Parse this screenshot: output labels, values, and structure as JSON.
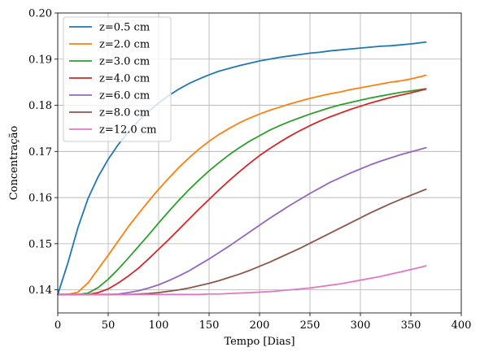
{
  "chart_data": {
    "type": "line",
    "title": "",
    "xlabel": "Tempo [Dias]",
    "ylabel": "Concentração",
    "xlim": [
      0,
      400
    ],
    "ylim": [
      0.135,
      0.2
    ],
    "xticks": [
      "0",
      "50",
      "100",
      "150",
      "200",
      "250",
      "300",
      "350",
      "400"
    ],
    "yticks": [
      "0.14",
      "0.15",
      "0.16",
      "0.17",
      "0.18",
      "0.19",
      "0.20"
    ],
    "grid": true,
    "legend_position": "top-left",
    "x": [
      0,
      10,
      20,
      30,
      40,
      50,
      60,
      70,
      80,
      90,
      100,
      110,
      120,
      130,
      140,
      150,
      160,
      170,
      180,
      190,
      200,
      210,
      220,
      230,
      240,
      250,
      260,
      270,
      280,
      290,
      300,
      310,
      320,
      330,
      340,
      350,
      365
    ],
    "series": [
      {
        "name": "z=0.5 cm",
        "color": "#1f77b4",
        "values": [
          0.139,
          0.1458,
          0.1535,
          0.1598,
          0.1645,
          0.1683,
          0.1715,
          0.1742,
          0.1766,
          0.1787,
          0.1805,
          0.1821,
          0.1835,
          0.1847,
          0.1857,
          0.1866,
          0.1874,
          0.188,
          0.1886,
          0.1891,
          0.1896,
          0.19,
          0.1904,
          0.1907,
          0.191,
          0.1913,
          0.1915,
          0.1918,
          0.192,
          0.1922,
          0.1924,
          0.1926,
          0.1928,
          0.1929,
          0.1931,
          0.1933,
          0.1937
        ]
      },
      {
        "name": "z=2.0 cm",
        "color": "#ff7f0e",
        "values": [
          0.139,
          0.139,
          0.1395,
          0.1415,
          0.1445,
          0.1475,
          0.1506,
          0.1537,
          0.1565,
          0.1592,
          0.1618,
          0.1642,
          0.1665,
          0.1686,
          0.1705,
          0.1722,
          0.1737,
          0.175,
          0.1762,
          0.1772,
          0.1781,
          0.1789,
          0.1796,
          0.1803,
          0.1809,
          0.1815,
          0.182,
          0.1825,
          0.1829,
          0.1834,
          0.1838,
          0.1842,
          0.1846,
          0.185,
          0.1853,
          0.1857,
          0.1865
        ]
      },
      {
        "name": "z=3.0 cm",
        "color": "#2ca02c",
        "values": [
          0.139,
          0.139,
          0.139,
          0.1393,
          0.1405,
          0.1423,
          0.1445,
          0.1469,
          0.1494,
          0.1519,
          0.1545,
          0.157,
          0.1594,
          0.1617,
          0.1638,
          0.1658,
          0.1676,
          0.1693,
          0.1708,
          0.1722,
          0.1734,
          0.1746,
          0.1756,
          0.1765,
          0.1773,
          0.1781,
          0.1788,
          0.1795,
          0.1801,
          0.1806,
          0.1811,
          0.1816,
          0.182,
          0.1824,
          0.1828,
          0.1831,
          0.1836
        ]
      },
      {
        "name": "z=4.0 cm",
        "color": "#d62728",
        "values": [
          0.139,
          0.139,
          0.139,
          0.139,
          0.1394,
          0.1402,
          0.1415,
          0.143,
          0.1447,
          0.1467,
          0.1488,
          0.1509,
          0.1531,
          0.1553,
          0.1575,
          0.1596,
          0.1617,
          0.1637,
          0.1656,
          0.1674,
          0.1691,
          0.1706,
          0.172,
          0.1733,
          0.1745,
          0.1756,
          0.1766,
          0.1775,
          0.1783,
          0.1791,
          0.1798,
          0.1805,
          0.1811,
          0.1817,
          0.1822,
          0.1827,
          0.1835
        ]
      },
      {
        "name": "z=6.0 cm",
        "color": "#9467bd",
        "values": [
          0.139,
          0.139,
          0.139,
          0.139,
          0.139,
          0.139,
          0.1391,
          0.1394,
          0.1398,
          0.1404,
          0.1411,
          0.142,
          0.143,
          0.1441,
          0.1454,
          0.1467,
          0.1481,
          0.1495,
          0.151,
          0.1525,
          0.154,
          0.1555,
          0.1569,
          0.1583,
          0.1596,
          0.1609,
          0.1621,
          0.1633,
          0.1643,
          0.1653,
          0.1662,
          0.1671,
          0.1679,
          0.1686,
          0.1693,
          0.1699,
          0.1708
        ]
      },
      {
        "name": "z=8.0 cm",
        "color": "#8c564b",
        "values": [
          0.139,
          0.139,
          0.139,
          0.139,
          0.139,
          0.139,
          0.139,
          0.139,
          0.1391,
          0.1392,
          0.1394,
          0.1397,
          0.14,
          0.1404,
          0.1409,
          0.1414,
          0.142,
          0.1427,
          0.1434,
          0.1442,
          0.1451,
          0.146,
          0.147,
          0.148,
          0.149,
          0.1501,
          0.1512,
          0.1523,
          0.1534,
          0.1545,
          0.1556,
          0.1567,
          0.1577,
          0.1587,
          0.1596,
          0.1605,
          0.1618
        ]
      },
      {
        "name": "z=12.0 cm",
        "color": "#e377c2",
        "values": [
          0.139,
          0.139,
          0.139,
          0.139,
          0.139,
          0.139,
          0.139,
          0.139,
          0.139,
          0.139,
          0.139,
          0.139,
          0.139,
          0.139,
          0.139,
          0.1391,
          0.1391,
          0.1392,
          0.1393,
          0.1394,
          0.1395,
          0.1396,
          0.1398,
          0.14,
          0.1402,
          0.1404,
          0.1407,
          0.141,
          0.1413,
          0.1417,
          0.1421,
          0.1425,
          0.1429,
          0.1434,
          0.1439,
          0.1444,
          0.1452
        ]
      }
    ]
  }
}
